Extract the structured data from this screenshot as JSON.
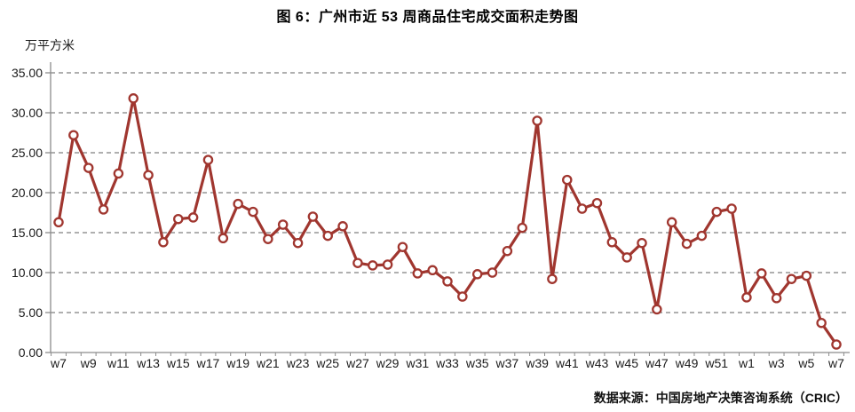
{
  "title": "图 6：广州市近 53 周商品住宅成交面积走势图",
  "source": "数据来源：中国房地产决策咨询系统（CRIC）",
  "chart_data": {
    "type": "line",
    "title": "图 6：广州市近 53 周商品住宅成交面积走势图",
    "xlabel": "",
    "ylabel": "万平方米",
    "ylim": [
      0,
      35
    ],
    "ytick_step": 5,
    "ytick_decimals": 2,
    "x_tick_label_every": 2,
    "grid": "horizontal-dashed",
    "legend": "none",
    "line_color": "#A0362F",
    "grid_color": "#7F7F7F",
    "axis_color": "#8C8C8C",
    "marker_style": "open-circle-white-fill",
    "categories": [
      "w7",
      "w8",
      "w9",
      "w10",
      "w11",
      "w12",
      "w13",
      "w14",
      "w15",
      "w16",
      "w17",
      "w18",
      "w19",
      "w20",
      "w21",
      "w22",
      "w23",
      "w24",
      "w25",
      "w26",
      "w27",
      "w28",
      "w29",
      "w30",
      "w31",
      "w32",
      "w33",
      "w34",
      "w35",
      "w36",
      "w37",
      "w38",
      "w39",
      "w40",
      "w41",
      "w42",
      "w43",
      "w44",
      "w45",
      "w46",
      "w47",
      "w48",
      "w49",
      "w50",
      "w51",
      "w52",
      "w1",
      "w2",
      "w3",
      "w4",
      "w5",
      "w6",
      "w7"
    ],
    "values": [
      16.3,
      27.2,
      23.1,
      17.9,
      22.4,
      31.8,
      22.2,
      13.8,
      16.7,
      16.9,
      24.1,
      14.3,
      18.6,
      17.6,
      14.2,
      16.0,
      13.7,
      17.0,
      14.6,
      15.8,
      11.2,
      10.9,
      11.0,
      13.2,
      9.9,
      10.3,
      8.9,
      7.0,
      9.8,
      10.0,
      12.7,
      15.6,
      29.0,
      9.2,
      21.6,
      18.0,
      18.7,
      13.8,
      11.9,
      13.7,
      5.4,
      16.3,
      13.6,
      14.6,
      17.6,
      18.0,
      6.9,
      9.9,
      6.8,
      9.2,
      9.6,
      3.7,
      1.0
    ]
  }
}
